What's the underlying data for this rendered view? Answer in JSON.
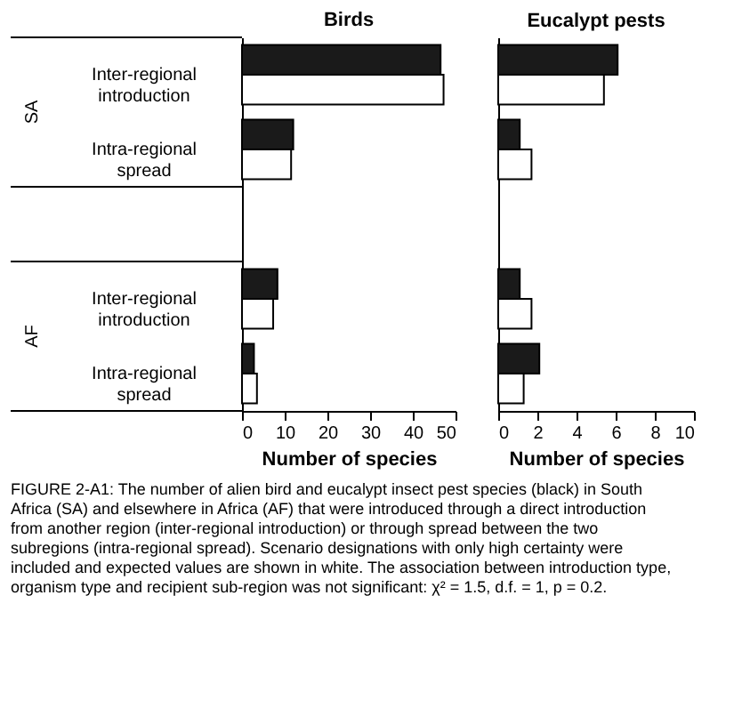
{
  "chart_data": [
    {
      "type": "bar",
      "orientation": "horizontal",
      "title": "Birds",
      "xlabel": "Number of species",
      "categories": [
        "Inter-regional introduction",
        "Intra-regional spread",
        "Inter-regional introduction",
        "Intra-regional spread"
      ],
      "series": [
        {
          "color": "#1a1a1a",
          "values": [
            46.5,
            12,
            8.3,
            2.8
          ]
        },
        {
          "color": "#ffffff",
          "values": [
            47.2,
            11.5,
            7.3,
            3.5
          ]
        }
      ],
      "xlim": [
        0,
        50
      ],
      "xticks": [
        0,
        10,
        20,
        30,
        40,
        50
      ],
      "grid": false,
      "annotations": [
        "SA",
        "AF",
        "FIGURE 2-A1: The number of alien bird and eucalypt insect pest species (black) in South Africa (SA) and elsewhere in Africa (AF) that were introduced through a direct introduction from another region (inter-regional introduction) or through spread between the two subregions (intra-regional spread). Scenario designations with only high certainty were included and expected values are shown in white. The association between introduction type, organism type and recipient sub-region was not significant: χ² = 1.5, d.f. = 1, p = 0.2."
      ]
    },
    {
      "type": "bar",
      "orientation": "horizontal",
      "title": "Eucalypt pests",
      "xlabel": "Number of species",
      "categories": [
        null,
        null,
        null,
        null
      ],
      "series": [
        {
          "color": "#1a1a1a",
          "values": [
            6.1,
            1.1,
            1.1,
            2.1
          ]
        },
        {
          "color": "#ffffff",
          "values": [
            5.4,
            1.7,
            1.7,
            1.3
          ]
        }
      ],
      "xlim": [
        0,
        10
      ],
      "xticks": [
        0,
        2,
        4,
        6,
        8,
        10
      ],
      "grid": false,
      "tick_labels": "x"
    }
  ]
}
